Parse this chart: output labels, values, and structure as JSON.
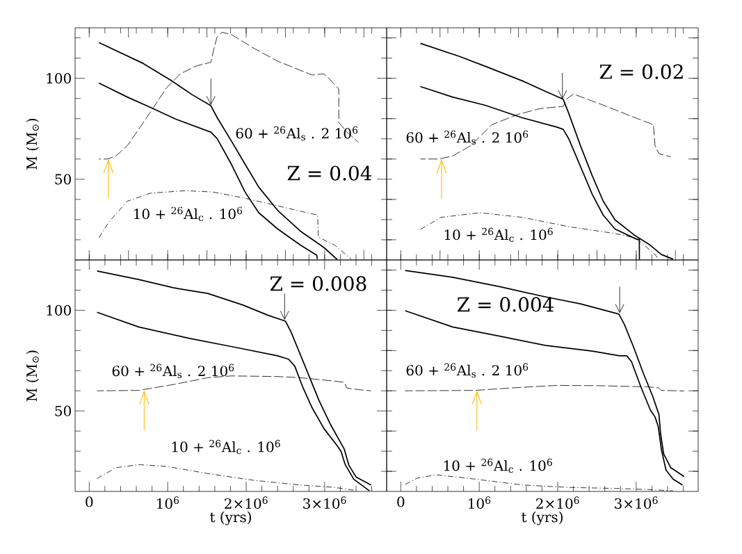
{
  "chart_data": [
    {
      "type": "line",
      "ylabel": "M (M$_{⊙}$)",
      "tick_labels": "y",
      "xlim": [
        -180000,
        3790000
      ],
      "ylim": [
        10,
        125
      ],
      "xticks": [
        {
          "value": 0,
          "label": null
        },
        {
          "value": 1000000,
          "label": null
        },
        {
          "value": 2000000,
          "label": null
        },
        {
          "value": 3000000,
          "label": null
        },
        {
          "value": 200000,
          "label": null
        },
        {
          "value": 400000,
          "label": null
        },
        {
          "value": 600000,
          "label": null
        },
        {
          "value": 800000,
          "label": null
        },
        {
          "value": 1200000,
          "label": null
        },
        {
          "value": 1400000,
          "label": null
        },
        {
          "value": 1600000,
          "label": null
        },
        {
          "value": 1800000,
          "label": null
        },
        {
          "value": 2200000,
          "label": null
        },
        {
          "value": 2400000,
          "label": null
        },
        {
          "value": 2600000,
          "label": null
        },
        {
          "value": 2800000,
          "label": null
        },
        {
          "value": 3200000,
          "label": null
        },
        {
          "value": 3400000,
          "label": null
        },
        {
          "value": 3600000,
          "label": null
        }
      ],
      "yticks": [
        50,
        100,
        {
          "value": 20,
          "label": null
        },
        {
          "value": 30,
          "label": null
        },
        {
          "value": 40,
          "label": null
        },
        {
          "value": 60,
          "label": null
        },
        {
          "value": 70,
          "label": null
        },
        {
          "value": 80,
          "label": null
        },
        {
          "value": 90,
          "label": null
        },
        {
          "value": 110,
          "label": null
        },
        {
          "value": 120,
          "label": null
        }
      ],
      "series": [
        {
          "color": "#000000",
          "line_style": "solid",
          "x": [
            124000,
            690000,
            1040000,
            1310000,
            1550000,
            1632000,
            1810000,
            1985000,
            2160000,
            2400000,
            2690000,
            2990000,
            3160000
          ],
          "values": [
            117.7,
            107.3,
            99.0,
            91.9,
            86.4,
            80.4,
            69.0,
            57.5,
            46.1,
            34.6,
            24.3,
            16.2,
            10.2
          ]
        },
        {
          "color": "#000000",
          "line_style": "solid",
          "x": [
            124000,
            485000,
            780000,
            1100000,
            1550000,
            1630000,
            1810000,
            1985000,
            2160000,
            2400000,
            2690000,
            2900000,
            2906000
          ],
          "values": [
            97.6,
            90.7,
            85.6,
            79.8,
            73.3,
            70.1,
            57.5,
            43.7,
            33.4,
            25.4,
            17.4,
            12.3,
            10.5
          ]
        },
        {
          "color": "#000000",
          "line_style": "dashed",
          "x": [
            124000,
            235000,
            340000,
            485000,
            630000,
            810000,
            985000,
            1160000,
            1370000,
            1550000,
            1590000,
            1630000,
            1690000,
            1810000,
            2100000,
            2400000,
            2840000,
            2990000,
            3040000,
            3180000,
            3181000,
            3280000,
            3430000
          ],
          "values": [
            60,
            60,
            61.5,
            66.6,
            74.7,
            85.0,
            95.3,
            102.2,
            106.2,
            107.9,
            114.8,
            120.5,
            122.8,
            121.7,
            114.8,
            108.5,
            101.6,
            102.2,
            100.5,
            94.7,
            78.1,
            73.5,
            68.3
          ]
        },
        {
          "color": "#000000",
          "line_style": "dotted",
          "x": [
            124000,
            250000,
            485000,
            780000,
            1220000,
            1570000,
            1960000,
            2400000,
            2910000,
            2920000,
            3130000,
            3340000
          ],
          "values": [
            21.0,
            28.8,
            39.1,
            43.1,
            44.3,
            43.7,
            40.8,
            36.8,
            32.2,
            21.3,
            17.3,
            10.4
          ]
        }
      ],
      "annotations": [
        "Z = 0.04",
        "60 + $^{26}$Al$_{s}$ . 2 10$^{6}$",
        "10 + $^{26}$Al$_{c}$ . 10$^{6}$"
      ]
    },
    {
      "type": "line",
      "tick_labels": false,
      "xlim": [
        -180000,
        3790000
      ],
      "ylim": [
        10,
        125
      ],
      "xticks": [
        {
          "value": 0,
          "label": null
        },
        {
          "value": 1000000,
          "label": null
        },
        {
          "value": 2000000,
          "label": null
        },
        {
          "value": 3000000,
          "label": null
        },
        {
          "value": 200000,
          "label": null
        },
        {
          "value": 400000,
          "label": null
        },
        {
          "value": 600000,
          "label": null
        },
        {
          "value": 800000,
          "label": null
        },
        {
          "value": 1200000,
          "label": null
        },
        {
          "value": 1400000,
          "label": null
        },
        {
          "value": 1600000,
          "label": null
        },
        {
          "value": 1800000,
          "label": null
        },
        {
          "value": 2200000,
          "label": null
        },
        {
          "value": 2400000,
          "label": null
        },
        {
          "value": 2600000,
          "label": null
        },
        {
          "value": 2800000,
          "label": null
        },
        {
          "value": 3200000,
          "label": null
        },
        {
          "value": 3400000,
          "label": null
        },
        {
          "value": 3600000,
          "label": null
        }
      ],
      "yticks": [
        {
          "value": 50,
          "label": null
        },
        {
          "value": 100,
          "label": null
        },
        {
          "value": 20,
          "label": null
        },
        {
          "value": 30,
          "label": null
        },
        {
          "value": 40,
          "label": null
        },
        {
          "value": 60,
          "label": null
        },
        {
          "value": 70,
          "label": null
        },
        {
          "value": 80,
          "label": null
        },
        {
          "value": 90,
          "label": null
        },
        {
          "value": 110,
          "label": null
        },
        {
          "value": 120,
          "label": null
        }
      ],
      "series": [
        {
          "color": "#000000",
          "line_style": "solid",
          "x": [
            250000,
            750000,
            1100000,
            1550000,
            1840000,
            2070000,
            2140000,
            2290000,
            2440000,
            2580000,
            2730000,
            2970000,
            3180000,
            3320000,
            3470000
          ],
          "values": [
            117.3,
            110.8,
            105.6,
            98.7,
            93.6,
            89.6,
            82.7,
            66.6,
            51.7,
            39.1,
            29.9,
            22.5,
            17.3,
            12.7,
            10.4
          ]
        },
        {
          "color": "#000000",
          "line_style": "solid",
          "x": [
            250000,
            660000,
            1070000,
            1550000,
            1990000,
            2070000,
            2140000,
            2290000,
            2440000,
            2580000,
            2730000,
            3010000,
            3040000,
            3041000
          ],
          "values": [
            95.9,
            90.7,
            86.7,
            80.4,
            75.8,
            74.7,
            70.1,
            56.3,
            42.5,
            32.2,
            25.3,
            20.2,
            20.2,
            10.2
          ]
        },
        {
          "color": "#000000",
          "line_style": "dashed",
          "x": [
            250000,
            490000,
            660000,
            890000,
            1160000,
            1490000,
            1780000,
            2070000,
            2110000,
            2200000,
            2580000,
            3030000,
            3220000,
            3240000,
            3290000,
            3440000
          ],
          "values": [
            60,
            60,
            61.5,
            66.6,
            77.0,
            82.1,
            85.0,
            86.1,
            89.6,
            92.2,
            86.7,
            79.8,
            77.0,
            66.6,
            62.6,
            61.1
          ]
        },
        {
          "color": "#000000",
          "line_style": "dotted",
          "x": [
            250000,
            510000,
            1010000,
            1550000,
            2140000,
            2730000,
            3000000,
            3240000,
            3290000
          ],
          "values": [
            25.1,
            31.1,
            33.4,
            31.1,
            26.5,
            23.1,
            20.8,
            12.7,
            10.2
          ]
        }
      ],
      "annotations": [
        "Z = 0.02",
        "60 + $^{26}$Al$_{s}$ . 2 10$^{6}$",
        "10 + $^{26}$Al$_{c}$ . 10$^{6}$"
      ]
    },
    {
      "type": "line",
      "xlabel": "t (yrs)",
      "ylabel": "M (M$_{⊙}$)",
      "xlim": [
        -180000,
        3790000
      ],
      "ylim": [
        10,
        125
      ],
      "xticks": [
        0,
        {
          "value": 1000000,
          "label": "10$^{6}$"
        },
        {
          "value": 2000000,
          "label": "2×10$^{6}$"
        },
        {
          "value": 3000000,
          "label": "3×10$^{6}$"
        },
        {
          "value": 200000,
          "label": null
        },
        {
          "value": 400000,
          "label": null
        },
        {
          "value": 600000,
          "label": null
        },
        {
          "value": 800000,
          "label": null
        },
        {
          "value": 1200000,
          "label": null
        },
        {
          "value": 1400000,
          "label": null
        },
        {
          "value": 1600000,
          "label": null
        },
        {
          "value": 1800000,
          "label": null
        },
        {
          "value": 2200000,
          "label": null
        },
        {
          "value": 2400000,
          "label": null
        },
        {
          "value": 2600000,
          "label": null
        },
        {
          "value": 2800000,
          "label": null
        },
        {
          "value": 3200000,
          "label": null
        },
        {
          "value": 3400000,
          "label": null
        },
        {
          "value": 3600000,
          "label": null
        }
      ],
      "yticks": [
        50,
        100,
        {
          "value": 20,
          "label": null
        },
        {
          "value": 30,
          "label": null
        },
        {
          "value": 40,
          "label": null
        },
        {
          "value": 60,
          "label": null
        },
        {
          "value": 70,
          "label": null
        },
        {
          "value": 80,
          "label": null
        },
        {
          "value": 90,
          "label": null
        },
        {
          "value": 110,
          "label": null
        },
        {
          "value": 120,
          "label": null
        }
      ],
      "series": [
        {
          "color": "#000000",
          "line_style": "solid",
          "x": [
            100000,
            630000,
            1070000,
            1510000,
            1960000,
            2280000,
            2500000,
            2570000,
            2690000,
            2810000,
            2930000,
            3070000,
            3250000,
            3310000,
            3400000,
            3590000
          ],
          "values": [
            119.5,
            115.3,
            111.2,
            108.4,
            102.6,
            97.5,
            94.6,
            89.4,
            78.0,
            66.5,
            55.0,
            43.6,
            31.0,
            22.9,
            17.2,
            13.2
          ]
        },
        {
          "color": "#000000",
          "line_style": "solid",
          "x": [
            100000,
            630000,
            1280000,
            1810000,
            2400000,
            2540000,
            2620000,
            2720000,
            2840000,
            2990000,
            3160000,
            3210000,
            3260000,
            3370000,
            3570000
          ],
          "values": [
            99.0,
            91.7,
            86.0,
            82.0,
            77.4,
            75.7,
            72.2,
            61.9,
            51.6,
            41.3,
            32.7,
            29.8,
            23.5,
            16.1,
            10.3
          ]
        },
        {
          "color": "#000000",
          "line_style": "dashed",
          "x": [
            100000,
            630000,
            1070000,
            1510000,
            1810000,
            2400000,
            2690000,
            3130000,
            3250000,
            3280000,
            3430000,
            3590000
          ],
          "values": [
            60,
            60.2,
            63.1,
            66.5,
            67.4,
            67.1,
            66.5,
            64.8,
            64.2,
            61.4,
            60.6,
            60
          ]
        },
        {
          "color": "#000000",
          "line_style": "dotted",
          "x": [
            100000,
            340000,
            630000,
            990000,
            1510000,
            2100000,
            2690000,
            3130000,
            3370000
          ],
          "values": [
            16.4,
            21.8,
            23.3,
            22.4,
            18.9,
            15.5,
            13.2,
            12.0,
            10.6
          ]
        }
      ],
      "annotations": [
        "Z = 0.008",
        "60 + $^{26}$Al$_{s}$ . 2 10$^{6}$",
        "10 + $^{26}$Al$_{c}$ . 10$^{6}$"
      ]
    },
    {
      "type": "line",
      "xlabel": "t (yrs)",
      "tick_labels": "x",
      "xlim": [
        -180000,
        3790000
      ],
      "ylim": [
        10,
        125
      ],
      "xticks": [
        0,
        {
          "value": 1000000,
          "label": "10$^{6}$"
        },
        {
          "value": 2000000,
          "label": "2×10$^{6}$"
        },
        {
          "value": 3000000,
          "label": "3×10$^{6}$"
        },
        {
          "value": 200000,
          "label": null
        },
        {
          "value": 400000,
          "label": null
        },
        {
          "value": 600000,
          "label": null
        },
        {
          "value": 800000,
          "label": null
        },
        {
          "value": 1200000,
          "label": null
        },
        {
          "value": 1400000,
          "label": null
        },
        {
          "value": 1600000,
          "label": null
        },
        {
          "value": 1800000,
          "label": null
        },
        {
          "value": 2200000,
          "label": null
        },
        {
          "value": 2400000,
          "label": null
        },
        {
          "value": 2600000,
          "label": null
        },
        {
          "value": 2800000,
          "label": null
        },
        {
          "value": 3200000,
          "label": null
        },
        {
          "value": 3400000,
          "label": null
        },
        {
          "value": 3600000,
          "label": null
        }
      ],
      "yticks": [
        {
          "value": 50,
          "label": null
        },
        {
          "value": 100,
          "label": null
        },
        {
          "value": 20,
          "label": null
        },
        {
          "value": 30,
          "label": null
        },
        {
          "value": 40,
          "label": null
        },
        {
          "value": 60,
          "label": null
        },
        {
          "value": 70,
          "label": null
        },
        {
          "value": 80,
          "label": null
        },
        {
          "value": 90,
          "label": null
        },
        {
          "value": 110,
          "label": null
        },
        {
          "value": 120,
          "label": null
        }
      ],
      "series": [
        {
          "color": "#000000",
          "line_style": "solid",
          "x": [
            56000,
            660000,
            1250000,
            1840000,
            2290000,
            2780000,
            2850000,
            2970000,
            3090000,
            3210000,
            3290000,
            3310000,
            3350000,
            3440000,
            3610000
          ],
          "values": [
            119.8,
            116.4,
            111.8,
            106.7,
            103.2,
            98.1,
            92.9,
            81.4,
            68.8,
            57.3,
            48.2,
            39.0,
            28.7,
            21.8,
            17.4
          ]
        },
        {
          "color": "#000000",
          "line_style": "solid",
          "x": [
            56000,
            660000,
            1250000,
            1840000,
            2440000,
            2790000,
            2880000,
            2940000,
            3060000,
            3180000,
            3240000,
            3280000,
            3320000,
            3380000,
            3470000,
            3590000
          ],
          "values": [
            99.8,
            91.7,
            87.2,
            82.6,
            79.7,
            77.4,
            77.4,
            74.5,
            61.9,
            50.5,
            47.0,
            42.4,
            31.0,
            20.6,
            16.1,
            13.2
          ]
        },
        {
          "color": "#000000",
          "line_style": "dashed",
          "x": [
            56000,
            950000,
            1400000,
            1990000,
            2580000,
            3180000,
            3290000,
            3320000,
            3610000
          ],
          "values": [
            60,
            60.2,
            61.4,
            62.7,
            62.5,
            61.9,
            61.4,
            60.2,
            59.9
          ]
        },
        {
          "color": "#000000",
          "line_style": "dotted",
          "x": [
            56000,
            210000,
            450000,
            950000,
            1550000,
            2140000,
            2730000,
            3180000,
            3470000
          ],
          "values": [
            13.5,
            16.6,
            18.3,
            16.1,
            13.2,
            12.0,
            11.5,
            10.9,
            10.3
          ]
        }
      ],
      "annotations": [
        "Z = 0.004",
        "60 + $^{26}$Al$_{s}$ . 2 10$^{6}$",
        "10 + $^{26}$Al$_{c}$ . 10$^{6}$"
      ]
    }
  ]
}
